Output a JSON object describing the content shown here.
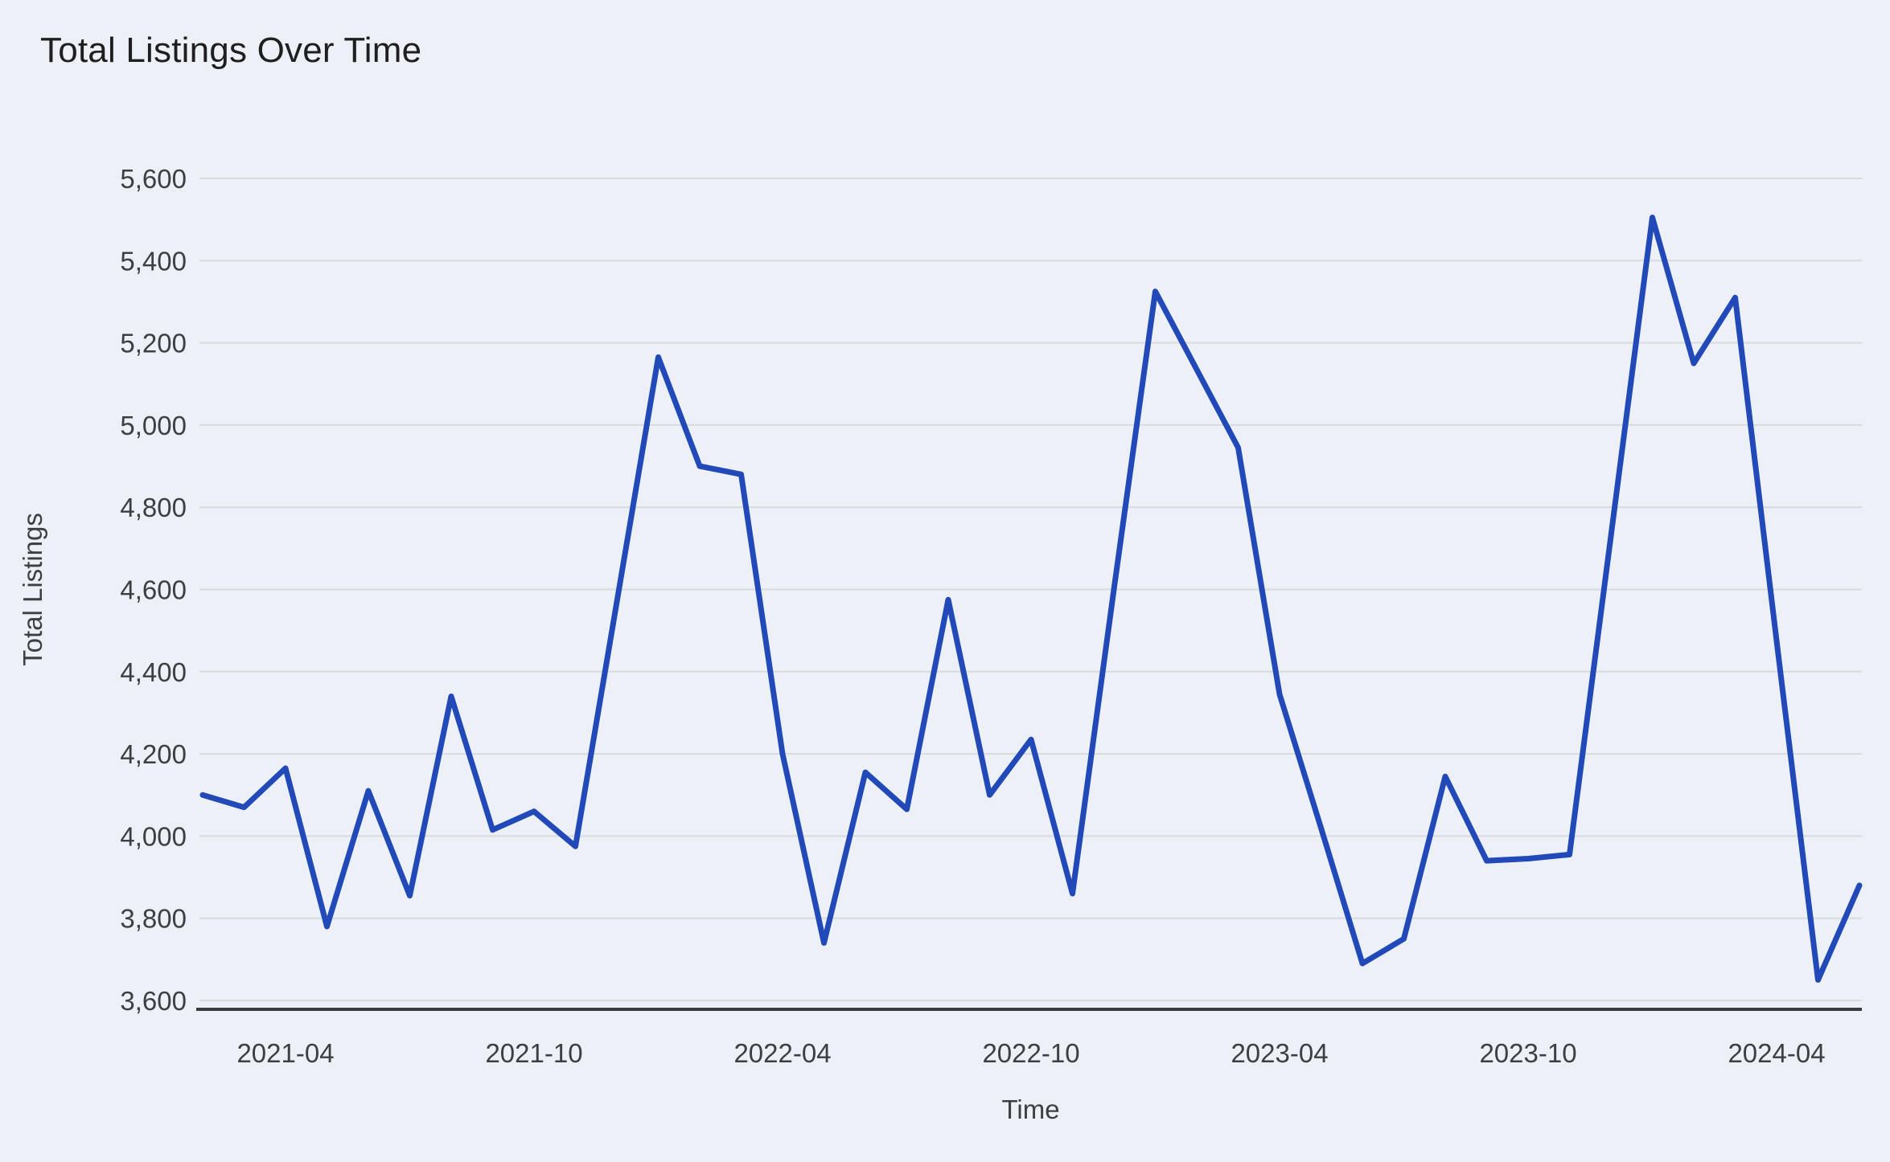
{
  "chart_data": {
    "type": "line",
    "title": "Total Listings Over Time",
    "xlabel": "Time",
    "ylabel": "Total Listings",
    "legend": "none",
    "grid": "horizontal",
    "ylim": [
      3600,
      5600
    ],
    "y_ticks": [
      3600,
      3800,
      4000,
      4200,
      4400,
      4600,
      4800,
      5000,
      5200,
      5400,
      5600
    ],
    "y_tick_labels": [
      "3,600",
      "3,800",
      "4,000",
      "4,200",
      "4,400",
      "4,600",
      "4,800",
      "5,000",
      "5,200",
      "5,400",
      "5,600"
    ],
    "x_tick_labels": [
      "2021-04",
      "2021-10",
      "2022-04",
      "2022-10",
      "2023-04",
      "2023-10",
      "2024-04"
    ],
    "x": [
      "2021-02",
      "2021-03",
      "2021-04",
      "2021-05",
      "2021-06",
      "2021-07",
      "2021-08",
      "2021-09",
      "2021-10",
      "2021-11",
      "2021-12",
      "2022-01",
      "2022-02",
      "2022-03",
      "2022-04",
      "2022-05",
      "2022-06",
      "2022-07",
      "2022-08",
      "2022-09",
      "2022-10",
      "2022-11",
      "2022-12",
      "2023-01",
      "2023-02",
      "2023-03",
      "2023-04",
      "2023-05",
      "2023-06",
      "2023-07",
      "2023-08",
      "2023-09",
      "2023-10",
      "2023-11",
      "2023-12",
      "2024-01",
      "2024-02",
      "2024-03",
      "2024-04",
      "2024-05",
      "2024-06"
    ],
    "values": [
      4100,
      4070,
      4165,
      3780,
      4110,
      3855,
      4340,
      4015,
      4060,
      3975,
      4570,
      5165,
      4900,
      4880,
      4200,
      3740,
      4155,
      4065,
      4575,
      4100,
      4235,
      3860,
      4600,
      5325,
      5135,
      4945,
      4345,
      4020,
      3690,
      3750,
      4145,
      3940,
      3945,
      3955,
      4730,
      5505,
      5150,
      5310,
      4475,
      3650,
      3880
    ],
    "colors": {
      "line": "#2149b8",
      "background": "#edf0f7",
      "gridline": "#d7dadf",
      "axis_line": "#3a3d40",
      "title_text": "#1f1f1f",
      "tick_text": "#3c4043"
    }
  }
}
